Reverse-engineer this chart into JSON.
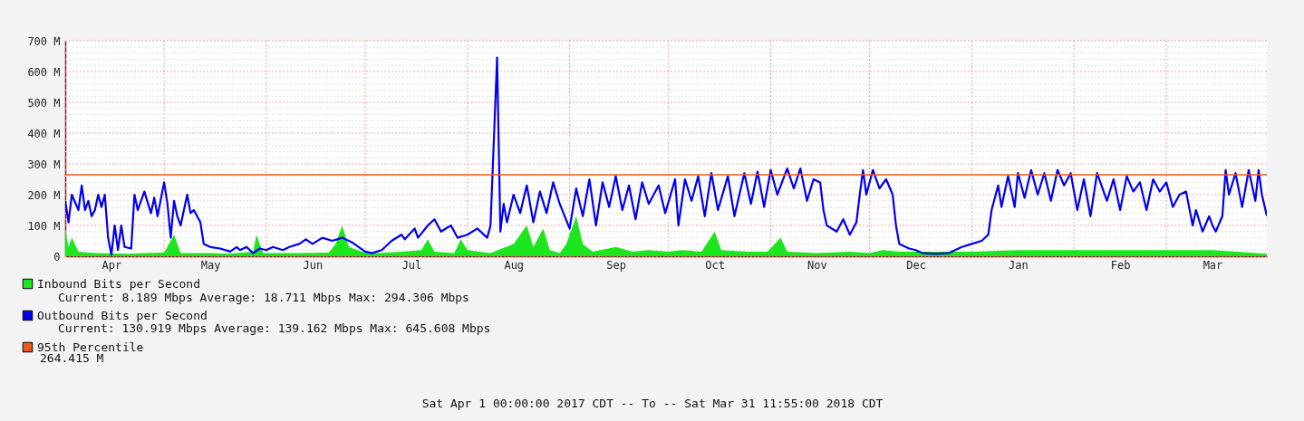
{
  "chart_data": {
    "type": "line",
    "grid": true,
    "legend": "bottom left",
    "xlim": [
      "2017-04-01",
      "2018-03-31T11:55"
    ],
    "xticks": [
      {
        "value": "2017-04-15",
        "label": "Apr"
      },
      {
        "value": "2017-05-15",
        "label": "May"
      },
      {
        "value": "2017-06-15",
        "label": "Jun"
      },
      {
        "value": "2017-07-15",
        "label": "Jul"
      },
      {
        "value": "2017-08-15",
        "label": "Aug"
      },
      {
        "value": "2017-09-15",
        "label": "Sep"
      },
      {
        "value": "2017-10-15",
        "label": "Oct"
      },
      {
        "value": "2017-11-15",
        "label": "Nov"
      },
      {
        "value": "2017-12-15",
        "label": "Dec"
      },
      {
        "value": "2018-01-15",
        "label": "Jan"
      },
      {
        "value": "2018-02-15",
        "label": "Feb"
      },
      {
        "value": "2018-03-15",
        "label": "Mar"
      },
      {
        "value": "2017-05-01",
        "label": null
      },
      {
        "value": "2017-06-01",
        "label": null
      },
      {
        "value": "2017-07-01",
        "label": null
      },
      {
        "value": "2017-08-01",
        "label": null
      },
      {
        "value": "2017-09-01",
        "label": null
      },
      {
        "value": "2017-10-01",
        "label": null
      },
      {
        "value": "2017-11-01",
        "label": null
      },
      {
        "value": "2017-12-01",
        "label": null
      },
      {
        "value": "2018-01-01",
        "label": null
      },
      {
        "value": "2018-02-01",
        "label": null
      },
      {
        "value": "2018-03-01",
        "label": null
      }
    ],
    "ylim": [
      0,
      700
    ],
    "yticks": [
      {
        "value": 0,
        "label": "0"
      },
      {
        "value": 100,
        "label": "100 M"
      },
      {
        "value": 200,
        "label": "200 M"
      },
      {
        "value": 300,
        "label": "300 M"
      },
      {
        "value": 400,
        "label": "400 M"
      },
      {
        "value": 500,
        "label": "500 M"
      },
      {
        "value": 600,
        "label": "600 M"
      },
      {
        "value": 700,
        "label": "700 M"
      },
      {
        "value": 20,
        "label": null
      },
      {
        "value": 40,
        "label": null
      },
      {
        "value": 60,
        "label": null
      },
      {
        "value": 80,
        "label": null
      },
      {
        "value": 120,
        "label": null
      },
      {
        "value": 140,
        "label": null
      },
      {
        "value": 160,
        "label": null
      },
      {
        "value": 180,
        "label": null
      },
      {
        "value": 220,
        "label": null
      },
      {
        "value": 240,
        "label": null
      },
      {
        "value": 260,
        "label": null
      },
      {
        "value": 280,
        "label": null
      },
      {
        "value": 320,
        "label": null
      },
      {
        "value": 340,
        "label": null
      },
      {
        "value": 360,
        "label": null
      },
      {
        "value": 380,
        "label": null
      },
      {
        "value": 420,
        "label": null
      },
      {
        "value": 440,
        "label": null
      },
      {
        "value": 460,
        "label": null
      },
      {
        "value": 480,
        "label": null
      },
      {
        "value": 520,
        "label": null
      },
      {
        "value": 540,
        "label": null
      },
      {
        "value": 560,
        "label": null
      },
      {
        "value": 580,
        "label": null
      },
      {
        "value": 620,
        "label": null
      },
      {
        "value": 640,
        "label": null
      },
      {
        "value": 660,
        "label": null
      },
      {
        "value": 680,
        "label": null
      }
    ],
    "series": [
      {
        "name": "Inbound Bits per Second",
        "type": "area",
        "color": "#1ee61e",
        "x": [
          "2017-04-01",
          "2017-04-02",
          "2017-04-03",
          "2017-04-05",
          "2017-04-10",
          "2017-04-20",
          "2017-04-25",
          "2017-05-01",
          "2017-05-04",
          "2017-05-06",
          "2017-05-15",
          "2017-05-20",
          "2017-05-28",
          "2017-05-29",
          "2017-05-31",
          "2017-06-10",
          "2017-06-20",
          "2017-06-22",
          "2017-06-24",
          "2017-06-26",
          "2017-06-30",
          "2017-07-05",
          "2017-07-12",
          "2017-07-18",
          "2017-07-20",
          "2017-07-22",
          "2017-07-28",
          "2017-07-30",
          "2017-08-01",
          "2017-08-08",
          "2017-08-15",
          "2017-08-19",
          "2017-08-21",
          "2017-08-24",
          "2017-08-26",
          "2017-08-29",
          "2017-08-31",
          "2017-09-03",
          "2017-09-05",
          "2017-09-08",
          "2017-09-15",
          "2017-09-20",
          "2017-09-25",
          "2017-10-01",
          "2017-10-05",
          "2017-10-11",
          "2017-10-15",
          "2017-10-17",
          "2017-10-25",
          "2017-10-31",
          "2017-11-04",
          "2017-11-06",
          "2017-11-15",
          "2017-11-25",
          "2017-12-01",
          "2017-12-05",
          "2017-12-10",
          "2017-12-20",
          "2018-01-01",
          "2018-01-15",
          "2018-02-01",
          "2018-02-15",
          "2018-03-01",
          "2018-03-15",
          "2018-03-31T11:55"
        ],
        "values": [
          90,
          30,
          60,
          15,
          10,
          8,
          10,
          12,
          70,
          10,
          10,
          8,
          15,
          70,
          10,
          10,
          12,
          40,
          100,
          30,
          15,
          10,
          15,
          20,
          55,
          15,
          10,
          55,
          20,
          10,
          40,
          100,
          30,
          90,
          20,
          10,
          40,
          130,
          40,
          15,
          30,
          15,
          20,
          15,
          20,
          15,
          80,
          20,
          15,
          15,
          60,
          15,
          10,
          15,
          10,
          20,
          15,
          15,
          15,
          20,
          20,
          20,
          20,
          20,
          8.189
        ]
      },
      {
        "name": "Outbound Bits per Second",
        "type": "line",
        "color": "#0000f0",
        "x": [
          "2017-04-01",
          "2017-04-02",
          "2017-04-03",
          "2017-04-05",
          "2017-04-06",
          "2017-04-07",
          "2017-04-08",
          "2017-04-09",
          "2017-04-10",
          "2017-04-11",
          "2017-04-12",
          "2017-04-13",
          "2017-04-14",
          "2017-04-15",
          "2017-04-16",
          "2017-04-17",
          "2017-04-18",
          "2017-04-19",
          "2017-04-21",
          "2017-04-22",
          "2017-04-23",
          "2017-04-25",
          "2017-04-27",
          "2017-04-28",
          "2017-04-29",
          "2017-05-01",
          "2017-05-02",
          "2017-05-03",
          "2017-05-04",
          "2017-05-05",
          "2017-05-06",
          "2017-05-08",
          "2017-05-09",
          "2017-05-10",
          "2017-05-12",
          "2017-05-13",
          "2017-05-15",
          "2017-05-18",
          "2017-05-21",
          "2017-05-23",
          "2017-05-24",
          "2017-05-26",
          "2017-05-28",
          "2017-05-30",
          "2017-06-01",
          "2017-06-03",
          "2017-06-06",
          "2017-06-08",
          "2017-06-11",
          "2017-06-13",
          "2017-06-15",
          "2017-06-18",
          "2017-06-21",
          "2017-06-24",
          "2017-06-27",
          "2017-06-29",
          "2017-07-01",
          "2017-07-03",
          "2017-07-06",
          "2017-07-09",
          "2017-07-12",
          "2017-07-13",
          "2017-07-16",
          "2017-07-17",
          "2017-07-20",
          "2017-07-22",
          "2017-07-24",
          "2017-07-27",
          "2017-07-29",
          "2017-08-01",
          "2017-08-04",
          "2017-08-07",
          "2017-08-08",
          "2017-08-10",
          "2017-08-11",
          "2017-08-12",
          "2017-08-13",
          "2017-08-15",
          "2017-08-17",
          "2017-08-19",
          "2017-08-21",
          "2017-08-23",
          "2017-08-25",
          "2017-08-27",
          "2017-08-29",
          "2017-09-01",
          "2017-09-03",
          "2017-09-05",
          "2017-09-07",
          "2017-09-09",
          "2017-09-11",
          "2017-09-13",
          "2017-09-15",
          "2017-09-17",
          "2017-09-19",
          "2017-09-21",
          "2017-09-23",
          "2017-09-25",
          "2017-09-28",
          "2017-09-30",
          "2017-10-03",
          "2017-10-04",
          "2017-10-06",
          "2017-10-08",
          "2017-10-10",
          "2017-10-12",
          "2017-10-14",
          "2017-10-16",
          "2017-10-19",
          "2017-10-21",
          "2017-10-24",
          "2017-10-26",
          "2017-10-28",
          "2017-10-30",
          "2017-11-01",
          "2017-11-03",
          "2017-11-06",
          "2017-11-08",
          "2017-11-10",
          "2017-11-12",
          "2017-11-14",
          "2017-11-16",
          "2017-11-17",
          "2017-11-18",
          "2017-11-21",
          "2017-11-23",
          "2017-11-25",
          "2017-11-27",
          "2017-11-28",
          "2017-11-29",
          "2017-11-30",
          "2017-12-02",
          "2017-12-04",
          "2017-12-06",
          "2017-12-08",
          "2017-12-09",
          "2017-12-10",
          "2017-12-13",
          "2017-12-15",
          "2017-12-17",
          "2017-12-21",
          "2017-12-25",
          "2017-12-29",
          "2018-01-01",
          "2018-01-04",
          "2018-01-06",
          "2018-01-07",
          "2018-01-09",
          "2018-01-10",
          "2018-01-12",
          "2018-01-14",
          "2018-01-15",
          "2018-01-17",
          "2018-01-19",
          "2018-01-21",
          "2018-01-23",
          "2018-01-25",
          "2018-01-27",
          "2018-01-29",
          "2018-01-31",
          "2018-02-02",
          "2018-02-04",
          "2018-02-06",
          "2018-02-08",
          "2018-02-11",
          "2018-02-13",
          "2018-02-15",
          "2018-02-17",
          "2018-02-19",
          "2018-02-21",
          "2018-02-23",
          "2018-02-25",
          "2018-02-27",
          "2018-03-01",
          "2018-03-03",
          "2018-03-05",
          "2018-03-07",
          "2018-03-09",
          "2018-03-10",
          "2018-03-12",
          "2018-03-14",
          "2018-03-15",
          "2018-03-16",
          "2018-03-18",
          "2018-03-19",
          "2018-03-20",
          "2018-03-22",
          "2018-03-24",
          "2018-03-26",
          "2018-03-28",
          "2018-03-29",
          "2018-03-30",
          "2018-03-31T11:55"
        ],
        "values": [
          180,
          110,
          200,
          150,
          230,
          150,
          180,
          130,
          150,
          200,
          160,
          200,
          60,
          5,
          100,
          20,
          100,
          30,
          25,
          200,
          150,
          210,
          140,
          190,
          130,
          240,
          170,
          60,
          180,
          130,
          100,
          200,
          140,
          150,
          110,
          40,
          30,
          25,
          15,
          30,
          20,
          30,
          10,
          25,
          20,
          30,
          20,
          30,
          40,
          55,
          40,
          60,
          50,
          60,
          45,
          30,
          15,
          10,
          20,
          50,
          70,
          55,
          90,
          60,
          100,
          120,
          80,
          100,
          60,
          70,
          90,
          60,
          100,
          645.608,
          80,
          170,
          110,
          200,
          140,
          230,
          110,
          210,
          140,
          240,
          170,
          90,
          220,
          130,
          250,
          100,
          240,
          160,
          260,
          150,
          230,
          120,
          240,
          170,
          230,
          140,
          250,
          100,
          250,
          180,
          260,
          130,
          270,
          150,
          260,
          130,
          270,
          170,
          275,
          160,
          280,
          200,
          285,
          220,
          285,
          180,
          250,
          240,
          150,
          100,
          80,
          120,
          70,
          110,
          200,
          280,
          200,
          280,
          220,
          250,
          200,
          100,
          40,
          25,
          20,
          10,
          8,
          10,
          30,
          40,
          50,
          70,
          150,
          230,
          160,
          260,
          160,
          270,
          190,
          280,
          200,
          270,
          180,
          280,
          230,
          270,
          150,
          250,
          130,
          270,
          180,
          250,
          150,
          260,
          210,
          240,
          150,
          250,
          210,
          240,
          160,
          200,
          210,
          100,
          150,
          80,
          130,
          100,
          80,
          130,
          280,
          200,
          270,
          160,
          280,
          180,
          280,
          200,
          130.919
        ]
      }
    ],
    "ref_lines": [
      {
        "axis": "y",
        "value": 264.415,
        "label": "95th Percentile",
        "color": "#ec5a1e"
      }
    ],
    "annotations": [
      "Current: 8.189 Mbps Average: 18.711 Mbps Max: 294.306 Mbps",
      "Current: 130.919 Mbps Average: 139.162 Mbps Max: 645.608 Mbps",
      "264.415 M",
      "Sat Apr 1 00:00:00 2017 CDT -- To -- Sat Mar 31 11:55:00 2018 CDT"
    ]
  }
}
